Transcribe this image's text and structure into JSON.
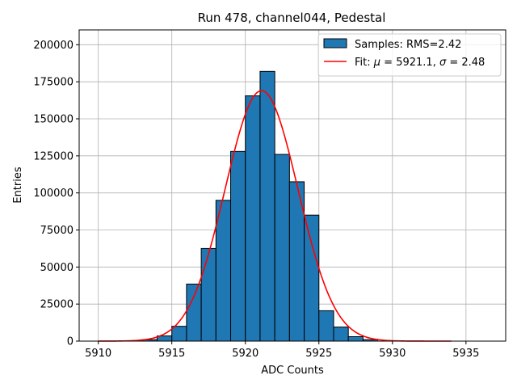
{
  "chart_data": {
    "type": "bar",
    "title": "Run 478, channel044, Pedestal",
    "xlabel": "ADC Counts",
    "ylabel": "Entries",
    "xlim": [
      5908.7,
      5937.7
    ],
    "ylim": [
      0,
      210000
    ],
    "grid": true,
    "xticks": [
      5910,
      5915,
      5920,
      5925,
      5930,
      5935
    ],
    "yticks": [
      0,
      25000,
      50000,
      75000,
      100000,
      125000,
      150000,
      175000,
      200000
    ],
    "histogram": {
      "name": "Samples: RMS=2.42",
      "color": "#1f77b4",
      "bin_edges": [
        5910,
        5911,
        5912,
        5913,
        5914,
        5915,
        5916,
        5917,
        5918,
        5919,
        5920,
        5921,
        5922,
        5923,
        5924,
        5925,
        5926,
        5927,
        5928,
        5929,
        5930,
        5931,
        5932,
        5933,
        5934,
        5935,
        5936
      ],
      "counts": [
        0,
        0,
        0,
        1000,
        3500,
        10000,
        38500,
        62500,
        95000,
        128000,
        165500,
        182000,
        126000,
        107500,
        85000,
        20500,
        9500,
        3000,
        1000,
        0,
        0,
        0,
        0,
        0,
        0,
        0
      ]
    },
    "fit": {
      "name": "Fit: μ = 5921.1, σ = 2.48",
      "color": "#ff0000",
      "mu": 5921.1,
      "sigma": 2.48,
      "peak": 169000,
      "x_range": [
        5910,
        5934
      ]
    },
    "legend_location": "upper right",
    "legend": {
      "hist_prefix": "Samples: RMS=2.42",
      "fit_prefix": "Fit: ",
      "mu_symbol": "μ",
      "mu_text": " = 5921.1, ",
      "sigma_symbol": "σ",
      "sigma_text": " = 2.48"
    }
  }
}
